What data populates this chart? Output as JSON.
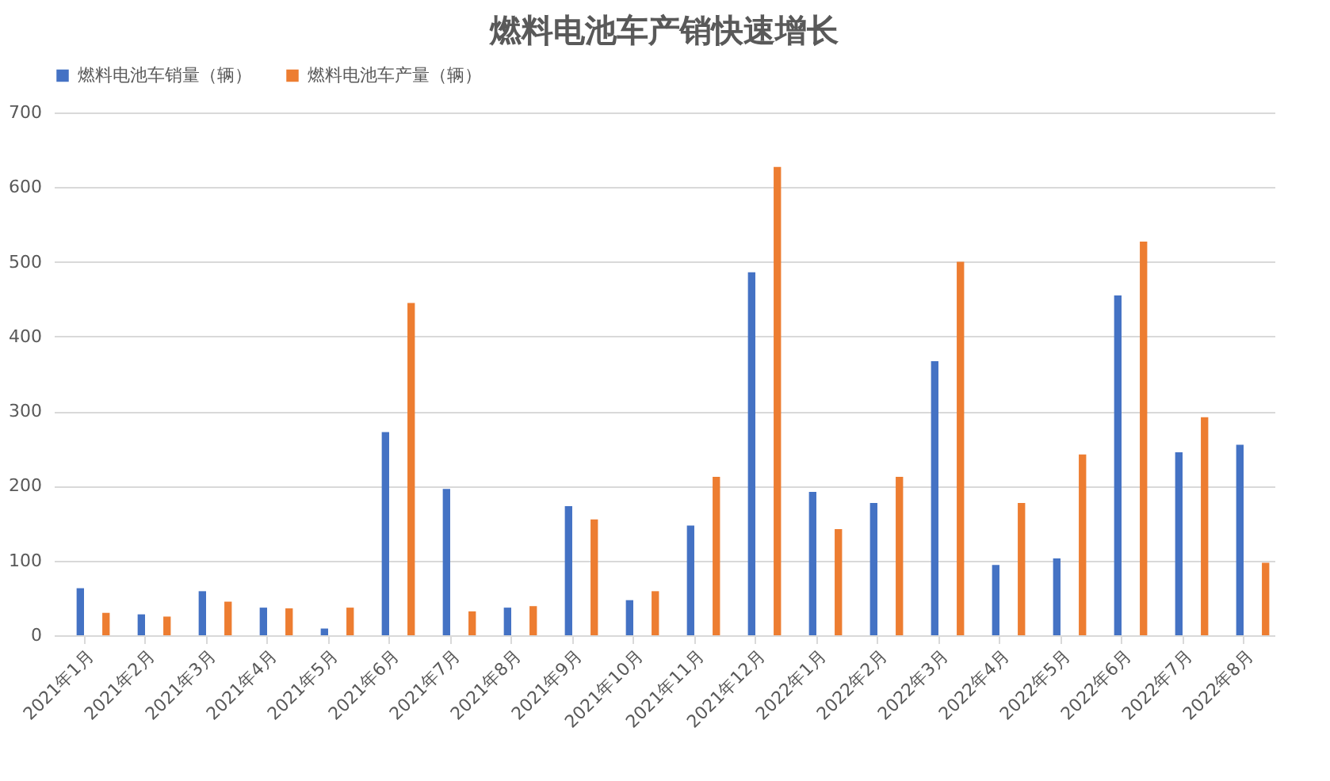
{
  "chart_data": {
    "type": "bar",
    "title": "燃料电池车产销快速增长",
    "categories": [
      "2021年1月",
      "2021年2月",
      "2021年3月",
      "2021年4月",
      "2021年5月",
      "2021年6月",
      "2021年7月",
      "2021年8月",
      "2021年9月",
      "2021年10月",
      "2021年11月",
      "2021年12月",
      "2022年1月",
      "2022年2月",
      "2022年3月",
      "2022年4月",
      "2022年5月",
      "2022年6月",
      "2022年7月",
      "2022年8月"
    ],
    "series": [
      {
        "name": "燃料电池车销量（辆）",
        "color": "#4472c4",
        "values": [
          63,
          28,
          59,
          37,
          9,
          272,
          196,
          37,
          173,
          47,
          147,
          486,
          192,
          177,
          367,
          94,
          103,
          455,
          245,
          255
        ]
      },
      {
        "name": "燃料电池车产量（辆）",
        "color": "#ed7d31",
        "values": [
          30,
          25,
          45,
          36,
          37,
          445,
          32,
          39,
          155,
          59,
          212,
          627,
          142,
          212,
          500,
          177,
          242,
          527,
          292,
          97
        ]
      }
    ],
    "ylim": [
      0,
      700
    ],
    "yticks": [
      0,
      100,
      200,
      300,
      400,
      500,
      600,
      700
    ],
    "grid": "y",
    "legend": "top"
  }
}
